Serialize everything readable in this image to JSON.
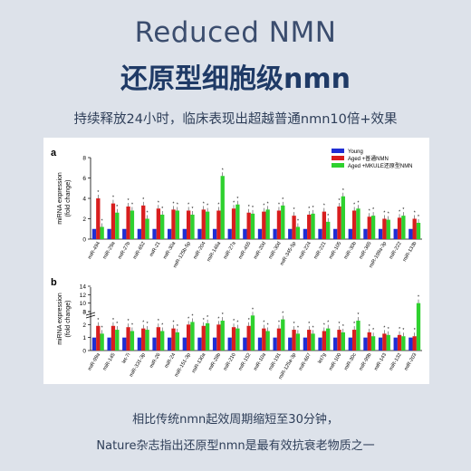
{
  "page": {
    "title_en": "Reduced NMN",
    "title_zh": "还原型细胞级nmn",
    "subtitle": "持续释放24小时，临床表现出超越普通nmn10倍+效果",
    "caption_1": "相比传统nmn起效周期缩短至30分钟，",
    "caption_2": "Nature杂志指出还原型nmn是最有效抗衰老物质之一",
    "colors": {
      "young": "#1f2ed4",
      "aged_common": "#d81e1e",
      "aged_reduced": "#2fd12f"
    }
  },
  "chart_data": [
    {
      "panel": "a",
      "type": "bar",
      "ylabel_1": "miRNA expression",
      "ylabel_2": "(fold change)",
      "ylim": [
        0,
        8
      ],
      "yticks": [
        0,
        2,
        4,
        6,
        8
      ],
      "legend": [
        "Young",
        "Aged +普通NMN",
        "Aged +MKULE还原型NMN"
      ],
      "legend_position": "top-right",
      "categories": [
        "miR-494",
        "miR-29a",
        "miR-27b",
        "miR-652",
        "miR-21",
        "miR-30a",
        "miR-125b-5p",
        "miR-204",
        "miR-146a",
        "miR-27a",
        "miR-455",
        "miR-20d",
        "miR-30d",
        "miR-345-5p",
        "miR-224",
        "miR-221",
        "miR-105",
        "miR-30b",
        "miR-365",
        "miR-199a-3p",
        "miR-222",
        "miR-133b"
      ],
      "series": [
        {
          "name": "Young",
          "values": [
            1,
            1,
            1,
            1,
            1,
            1,
            1,
            1,
            1,
            1,
            1,
            1,
            1,
            1,
            1,
            1,
            1,
            1,
            1,
            1,
            1,
            1
          ]
        },
        {
          "name": "Aged +普通NMN",
          "values": [
            4.0,
            3.5,
            3.2,
            3.3,
            3.0,
            2.9,
            2.8,
            2.9,
            2.8,
            3.0,
            2.6,
            2.7,
            2.8,
            2.3,
            2.4,
            2.7,
            3.2,
            2.8,
            2.2,
            2.0,
            2.1,
            2.0
          ]
        },
        {
          "name": "Aged +MKULE还原型NMN",
          "values": [
            1.2,
            2.6,
            2.8,
            2.0,
            2.4,
            2.8,
            2.4,
            2.7,
            6.2,
            3.4,
            2.5,
            2.9,
            3.3,
            1.2,
            2.5,
            1.7,
            4.2,
            3.0,
            2.3,
            1.9,
            2.3,
            1.6
          ]
        }
      ]
    },
    {
      "panel": "b",
      "type": "bar",
      "ylabel_1": "miRNA expression",
      "ylabel_2": "(fold change)",
      "ylim": [
        0,
        14
      ],
      "lower_ticks": [
        0,
        1,
        2,
        3
      ],
      "upper_ticks": [
        8,
        10,
        12,
        14
      ],
      "categories": [
        "miR-99a",
        "miR-145",
        "let-7i",
        "miR-331-3p",
        "miR-26",
        "miR-24",
        "miR-151-3p",
        "miR-130a",
        "miR-28b",
        "miR-210",
        "miR-152",
        "miR-10a",
        "miR-191",
        "miR-125a-3p",
        "miR-667",
        "let7g",
        "miR-100",
        "miR-30c",
        "miR-99b",
        "miR-143",
        "miR-132",
        "miR-203"
      ],
      "series": [
        {
          "name": "Young",
          "values": [
            1,
            1,
            1,
            1,
            1,
            1,
            1,
            1,
            1,
            1,
            1,
            1,
            1,
            1,
            1,
            1,
            1,
            1,
            1,
            1,
            1,
            1
          ]
        },
        {
          "name": "Aged +普通NMN",
          "values": [
            1.9,
            1.9,
            1.8,
            1.7,
            1.8,
            1.7,
            2.0,
            1.9,
            2.0,
            1.8,
            1.9,
            1.7,
            1.7,
            1.6,
            1.6,
            1.5,
            1.6,
            1.6,
            1.4,
            1.3,
            1.2,
            1.1
          ]
        },
        {
          "name": "Aged +MKULE还原型NMN",
          "values": [
            1.3,
            1.6,
            1.5,
            1.6,
            1.5,
            1.4,
            2.2,
            2.1,
            2.3,
            1.7,
            2.7,
            1.5,
            2.4,
            1.3,
            1.3,
            1.7,
            1.4,
            2.3,
            1.1,
            1.2,
            1.1,
            10.0
          ]
        }
      ]
    }
  ]
}
